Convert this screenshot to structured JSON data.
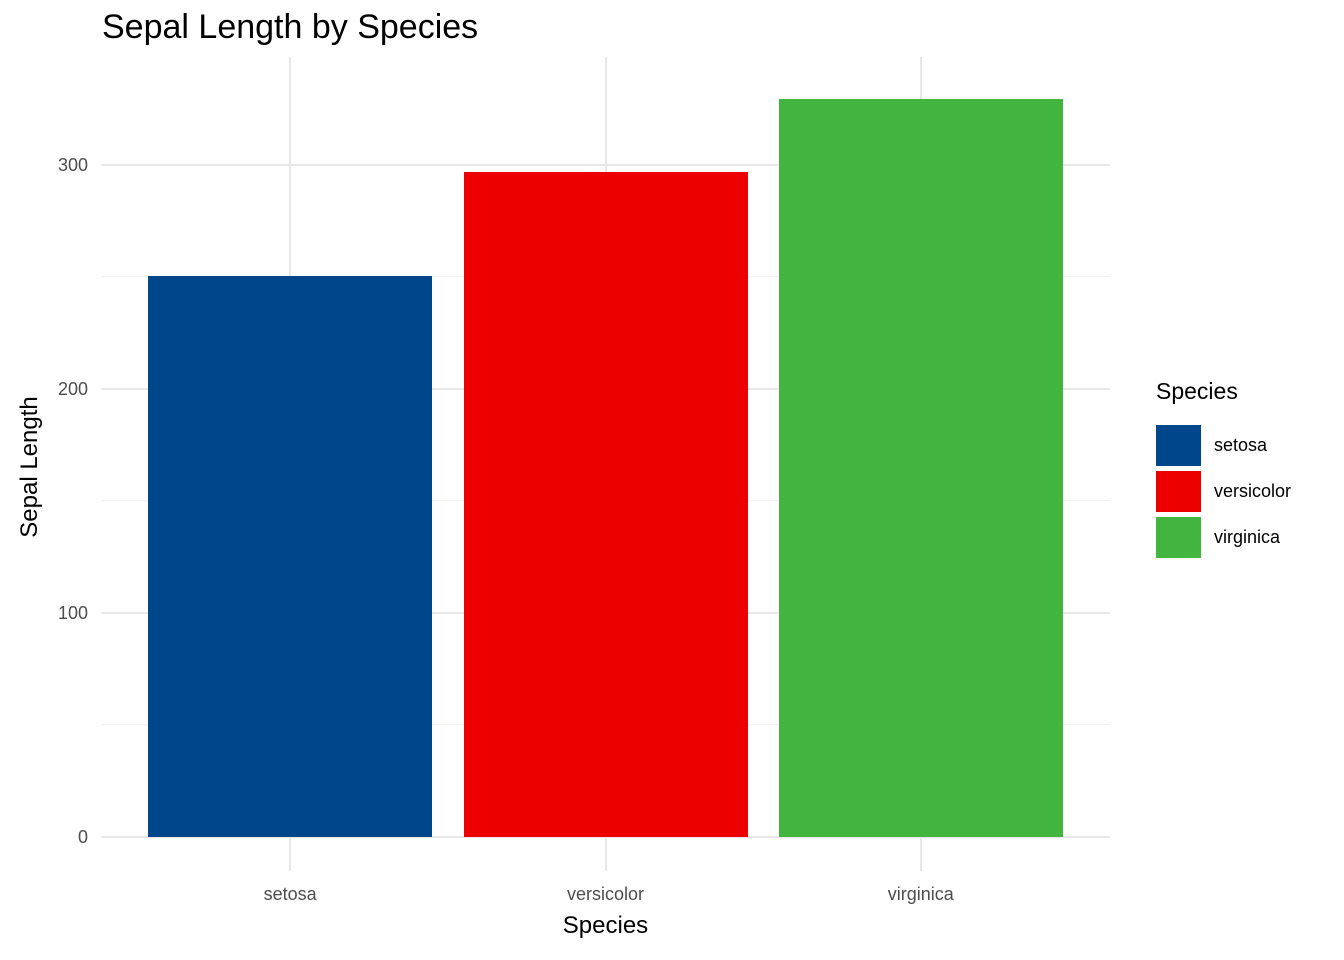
{
  "title": "Sepal Length by Species",
  "chart_data": {
    "type": "bar",
    "title": "Sepal Length by Species",
    "categories": [
      "setosa",
      "versicolor",
      "virginica"
    ],
    "values": [
      250.3,
      296.8,
      329.4
    ],
    "xlabel": "Species",
    "ylabel": "Sepal Length",
    "ylim": [
      0,
      348
    ],
    "yticks": [
      0,
      100,
      200,
      300
    ],
    "yticks_minor": [
      50,
      150,
      250
    ],
    "bar_colors": [
      "#00468B",
      "#ED0000",
      "#42B540"
    ],
    "bar_width_fraction": 0.9,
    "grid": "horizontal major+minor, vertical major at category centers",
    "legend_position": "right"
  },
  "legend": {
    "title": "Species",
    "items": [
      {
        "label": "setosa",
        "color": "#00468B"
      },
      {
        "label": "versicolor",
        "color": "#ED0000"
      },
      {
        "label": "virginica",
        "color": "#42B540"
      }
    ]
  },
  "colors": {
    "background": "#FFFFFF",
    "grid_major": "#E7E7E7",
    "grid_minor": "#F2F2F2",
    "tick_mark": "#E7E7E7",
    "tick_label_text": "#4D4D4D",
    "title_text": "#000000"
  }
}
